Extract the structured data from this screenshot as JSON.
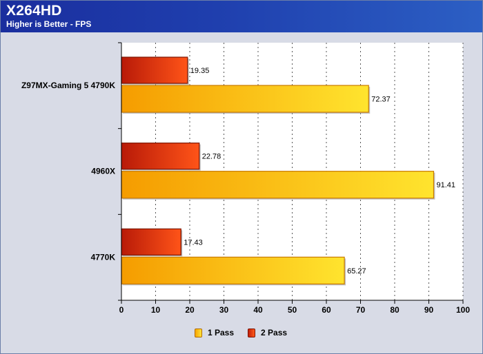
{
  "header": {
    "title": "X264HD",
    "subtitle": "Higher is Better - FPS"
  },
  "chart_data": {
    "type": "bar",
    "orientation": "horizontal",
    "title": "X264HD",
    "subtitle": "Higher is Better - FPS",
    "categories": [
      "Z97MX-Gaming 5 4790K",
      "4960X",
      "4770K"
    ],
    "series": [
      {
        "name": "1 Pass",
        "values": [
          72.37,
          91.41,
          65.27
        ],
        "color": "#f9b800"
      },
      {
        "name": "2 Pass",
        "values": [
          19.35,
          22.78,
          17.43
        ],
        "color": "#e0360f"
      }
    ],
    "value_labels": {
      "1 Pass": [
        "72.37",
        "91.41",
        "65.27"
      ],
      "2 Pass": [
        "19.35",
        "22.78",
        "17.43"
      ]
    },
    "xlim": [
      0,
      100
    ],
    "xticks": [
      0,
      10,
      20,
      30,
      40,
      50,
      60,
      70,
      80,
      90,
      100
    ],
    "grid": "vertical dashed",
    "legend": "bottom-center",
    "plot_background": "#ffffff"
  }
}
